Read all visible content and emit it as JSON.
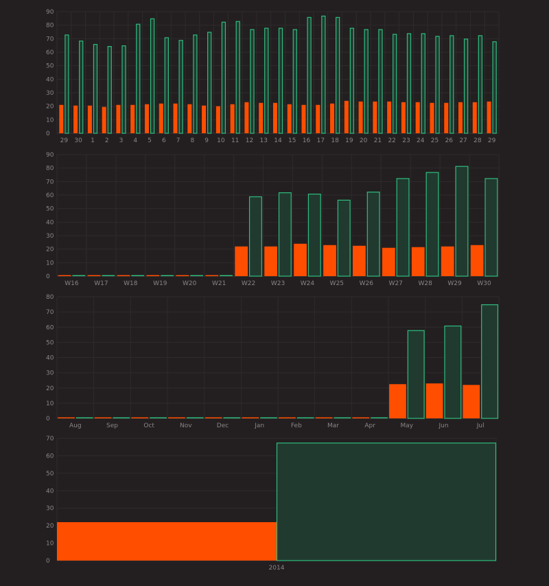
{
  "colors": {
    "background": "#231f20",
    "orange": "#ff4e00",
    "green_fill": "#213a30",
    "green_stroke": "#2ebd7e",
    "tick_text": "#8a8485"
  },
  "chart_data": [
    {
      "type": "bar",
      "categories": [
        "29",
        "30",
        "1",
        "2",
        "3",
        "4",
        "5",
        "6",
        "7",
        "8",
        "9",
        "10",
        "11",
        "12",
        "13",
        "14",
        "15",
        "16",
        "17",
        "18",
        "19",
        "20",
        "21",
        "22",
        "23",
        "24",
        "25",
        "26",
        "27",
        "28",
        "29"
      ],
      "series": [
        {
          "values": [
            21,
            20.5,
            20.5,
            19.5,
            21,
            21,
            21.5,
            22,
            22,
            21.5,
            20.5,
            20,
            21.5,
            23,
            22.5,
            22.5,
            21.5,
            21,
            21,
            22,
            24,
            23.5,
            23.5,
            23.5,
            23,
            23,
            22.5,
            22.5,
            23,
            23,
            23.5
          ]
        },
        {
          "values": [
            73,
            68.5,
            66,
            64.5,
            65,
            81,
            85,
            71,
            69,
            73,
            75,
            82.5,
            83,
            77,
            78,
            78,
            77,
            86,
            87,
            86,
            78,
            77,
            77,
            73.5,
            74,
            74,
            72,
            72.5,
            70,
            72.5,
            68
          ]
        }
      ],
      "ylim": [
        0,
        90
      ],
      "yticks": [
        0,
        10,
        20,
        30,
        40,
        50,
        60,
        70,
        80,
        90
      ]
    },
    {
      "type": "bar",
      "categories": [
        "W16",
        "W17",
        "W18",
        "W19",
        "W20",
        "W21",
        "W22",
        "W23",
        "W24",
        "W25",
        "W26",
        "W27",
        "W28",
        "W29",
        "W30"
      ],
      "series": [
        {
          "values": [
            0,
            0,
            0,
            0,
            0,
            0,
            22,
            22,
            24,
            23,
            22.5,
            21,
            21.5,
            22,
            23
          ]
        },
        {
          "values": [
            0,
            0,
            0,
            0,
            0,
            0,
            59,
            62,
            61,
            56.5,
            62.5,
            72.5,
            77,
            81.5,
            72.5
          ]
        }
      ],
      "ylim": [
        0,
        90
      ],
      "yticks": [
        0,
        10,
        20,
        30,
        40,
        50,
        60,
        70,
        80,
        90
      ]
    },
    {
      "type": "bar",
      "categories": [
        "Aug",
        "Sep",
        "Oct",
        "Nov",
        "Dec",
        "Jan",
        "Feb",
        "Mar",
        "Apr",
        "May",
        "Jun",
        "Jul"
      ],
      "series": [
        {
          "values": [
            0,
            0,
            0,
            0,
            0,
            0,
            0,
            0,
            0,
            22.5,
            23,
            22
          ]
        },
        {
          "values": [
            0,
            0,
            0,
            0,
            0,
            0,
            0,
            0,
            0,
            58,
            61,
            75
          ]
        }
      ],
      "ylim": [
        0,
        80
      ],
      "yticks": [
        0,
        10,
        20,
        30,
        40,
        50,
        60,
        70,
        80
      ]
    },
    {
      "type": "bar",
      "categories": [
        "2014"
      ],
      "series": [
        {
          "values": [
            22
          ]
        },
        {
          "values": [
            67.5
          ]
        }
      ],
      "ylim": [
        0,
        70
      ],
      "yticks": [
        0,
        10,
        20,
        30,
        40,
        50,
        60,
        70
      ]
    }
  ]
}
